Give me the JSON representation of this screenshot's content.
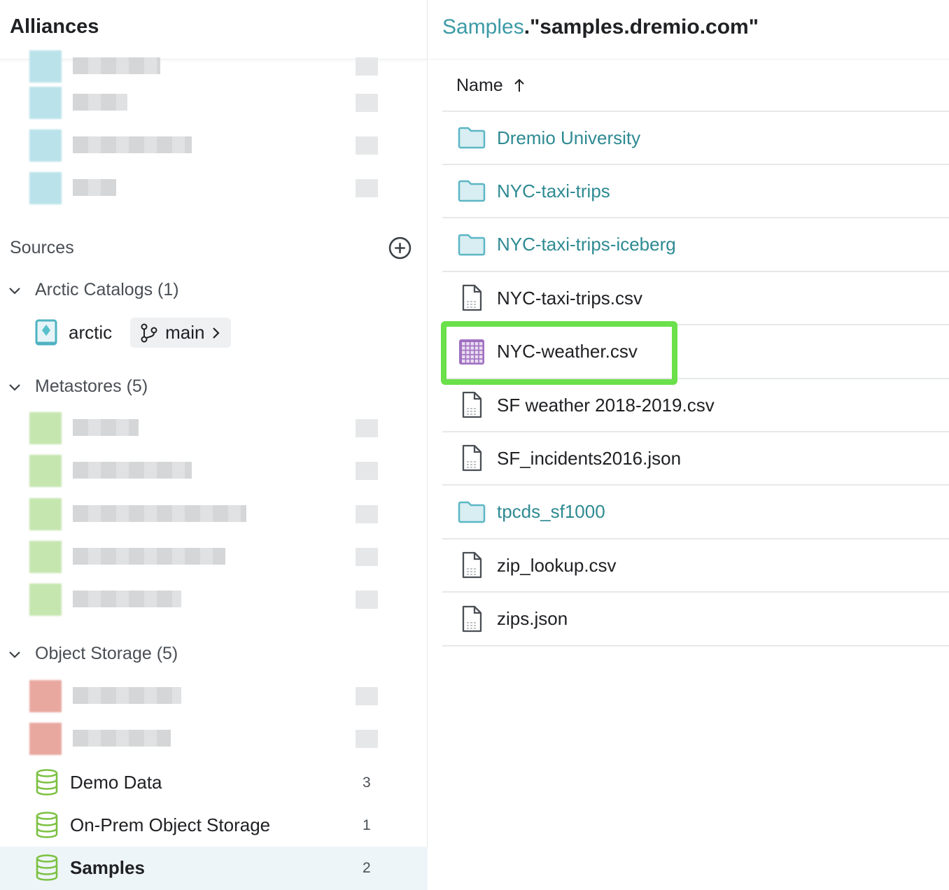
{
  "sidebar": {
    "title": "Alliances",
    "sources_label": "Sources",
    "groups": {
      "arctic": "Arctic Catalogs (1)",
      "metastores": "Metastores (5)",
      "object_storage": "Object Storage (5)"
    },
    "arctic": {
      "name": "arctic",
      "branch": "main"
    },
    "object_sources": [
      {
        "name": "Demo Data",
        "count": "3"
      },
      {
        "name": "On-Prem Object Storage",
        "count": "1"
      },
      {
        "name": "Samples",
        "count": "2",
        "selected": true
      }
    ]
  },
  "breadcrumb": {
    "parent": "Samples",
    "separator": ".",
    "current": "\"samples.dremio.com\""
  },
  "table": {
    "name_header": "Name",
    "sort": "ascending",
    "rows": [
      {
        "name": "Dremio University",
        "type": "folder"
      },
      {
        "name": "NYC-taxi-trips",
        "type": "folder"
      },
      {
        "name": "NYC-taxi-trips-iceberg",
        "type": "folder"
      },
      {
        "name": "NYC-taxi-trips.csv",
        "type": "file"
      },
      {
        "name": "NYC-weather.csv",
        "type": "dataset",
        "highlighted": true
      },
      {
        "name": "SF weather 2018-2019.csv",
        "type": "file"
      },
      {
        "name": "SF_incidents2016.json",
        "type": "file"
      },
      {
        "name": "tpcds_sf1000",
        "type": "folder"
      },
      {
        "name": "zip_lookup.csv",
        "type": "file"
      },
      {
        "name": "zips.json",
        "type": "file"
      }
    ]
  },
  "colors": {
    "accent": "#3b9aa6",
    "highlight": "#6ae04a",
    "dataset": "#a070c0",
    "source": "#7cc142"
  }
}
